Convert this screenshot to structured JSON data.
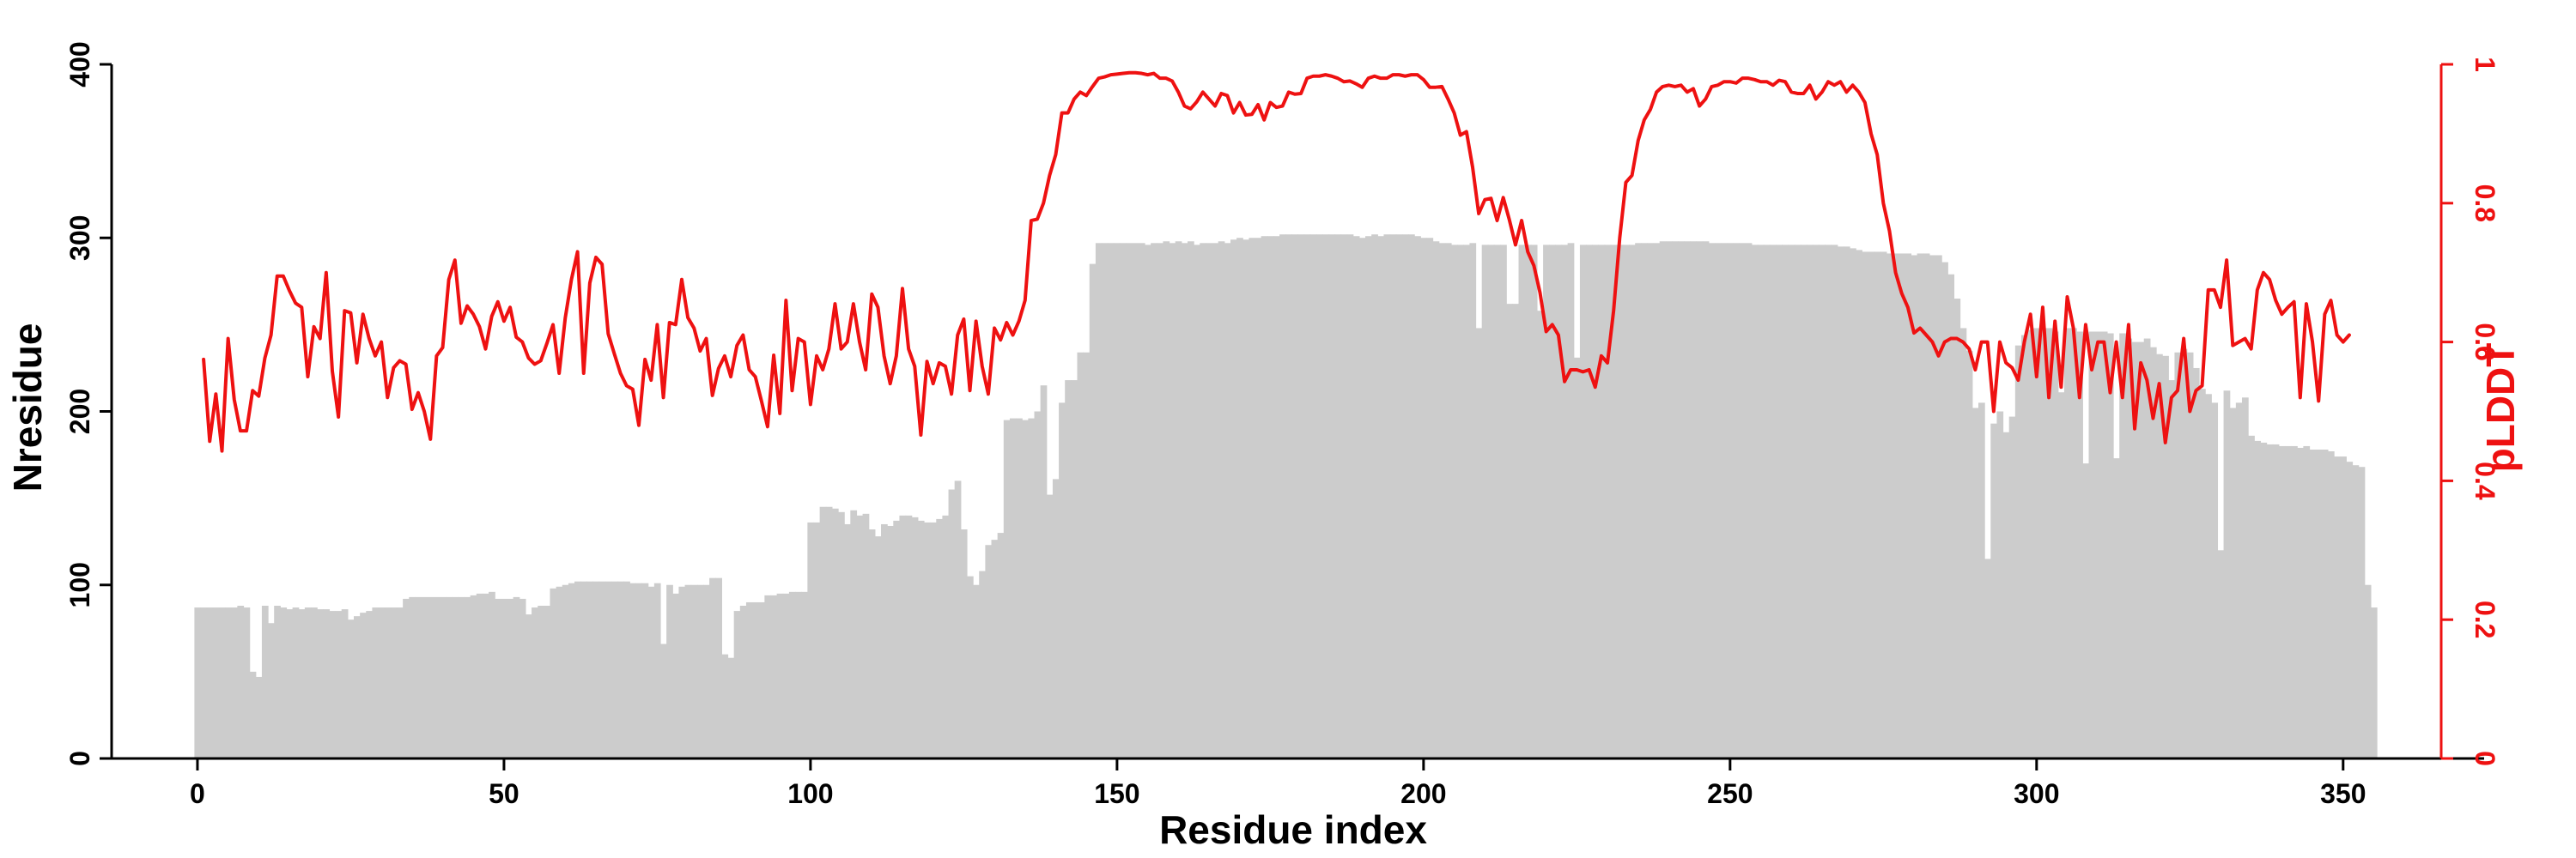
{
  "chart_data": {
    "type": "bar",
    "xlabel": "Residue index",
    "ylabel": "Nresidue",
    "y2label": "pLDDT",
    "xlim": [
      -14,
      373
    ],
    "ylim": [
      0,
      400
    ],
    "y2lim": [
      0,
      1
    ],
    "xticks": [
      0,
      50,
      100,
      150,
      200,
      250,
      300,
      350
    ],
    "yticks": [
      0,
      100,
      200,
      300,
      400
    ],
    "y2ticks": [
      0,
      0.2,
      0.4,
      0.6,
      0.8,
      1
    ],
    "grid": false,
    "colors": {
      "bars": "#cccccc",
      "plddt": "#ee1111",
      "axis": "#000000",
      "axis2": "#ee1111"
    },
    "series": [
      {
        "name": "Nresidue",
        "type": "bar",
        "x_start": 0,
        "values": [
          87,
          87,
          87,
          87,
          87,
          87,
          87,
          88,
          87,
          50,
          47,
          88,
          78,
          88,
          87,
          86,
          87,
          86,
          87,
          87,
          86,
          86,
          85,
          85,
          86,
          80,
          82,
          84,
          85,
          87,
          87,
          87,
          87,
          87,
          92,
          93,
          93,
          93,
          93,
          93,
          93,
          93,
          93,
          93,
          93,
          94,
          95,
          95,
          96,
          92,
          92,
          92,
          93,
          92,
          83,
          87,
          88,
          88,
          98,
          99,
          100,
          101,
          102,
          102,
          102,
          102,
          102,
          102,
          102,
          102,
          102,
          101,
          101,
          101,
          99,
          101,
          66,
          100,
          95,
          99,
          100,
          100,
          100,
          100,
          104,
          104,
          60,
          58,
          85,
          88,
          90,
          90,
          90,
          94,
          94,
          95,
          95,
          96,
          96,
          96,
          136,
          136,
          145,
          145,
          144,
          142,
          135,
          143,
          140,
          141,
          132,
          128,
          135,
          134,
          137,
          140,
          140,
          139,
          137,
          136,
          136,
          138,
          140,
          155,
          160,
          132,
          105,
          100,
          108,
          123,
          126,
          130,
          195,
          196,
          196,
          195,
          196,
          200,
          215,
          152,
          161,
          205,
          218,
          218,
          234,
          234,
          285,
          297,
          297,
          297,
          297,
          297,
          297,
          297,
          297,
          296,
          297,
          297,
          298,
          297,
          298,
          297,
          298,
          296,
          297,
          297,
          297,
          298,
          297,
          299,
          300,
          299,
          300,
          300,
          301,
          301,
          301,
          302,
          302,
          302,
          302,
          302,
          302,
          302,
          302,
          302,
          302,
          302,
          302,
          301,
          300,
          301,
          302,
          301,
          302,
          302,
          302,
          302,
          302,
          301,
          300,
          300,
          298,
          297,
          297,
          296,
          296,
          296,
          297,
          248,
          296,
          296,
          296,
          296,
          262,
          262,
          296,
          296,
          296,
          258,
          296,
          296,
          296,
          296,
          297,
          231,
          296,
          296,
          296,
          296,
          296,
          296,
          296,
          296,
          296,
          297,
          297,
          297,
          297,
          298,
          298,
          298,
          298,
          298,
          298,
          298,
          298,
          297,
          297,
          297,
          297,
          297,
          297,
          297,
          296,
          296,
          296,
          296,
          296,
          296,
          296,
          296,
          296,
          296,
          296,
          296,
          296,
          296,
          295,
          295,
          294,
          293,
          292,
          292,
          292,
          292,
          291,
          291,
          291,
          291,
          290,
          291,
          291,
          290,
          290,
          286,
          279,
          265,
          248,
          235,
          202,
          205,
          115,
          193,
          200,
          188,
          197,
          238,
          244,
          247,
          248,
          248,
          248,
          246,
          211,
          248,
          248,
          246,
          170,
          246,
          246,
          246,
          245,
          173,
          245,
          242,
          240,
          240,
          242,
          237,
          233,
          232,
          218,
          234,
          236,
          234,
          225,
          213,
          210,
          205,
          120,
          212,
          202,
          205,
          208,
          186,
          183,
          182,
          181,
          181,
          180,
          180,
          180,
          179,
          180,
          178,
          178,
          178,
          177,
          174,
          174,
          171,
          169,
          168,
          100,
          87
        ]
      },
      {
        "name": "pLDDT",
        "type": "line",
        "axis": "y2",
        "x_start": 1,
        "values": [
          0.575,
          0.457,
          0.525,
          0.443,
          0.605,
          0.517,
          0.472,
          0.472,
          0.53,
          0.522,
          0.577,
          0.61,
          0.695,
          0.695,
          0.674,
          0.656,
          0.65,
          0.55,
          0.622,
          0.605,
          0.7,
          0.558,
          0.492,
          0.645,
          0.642,
          0.57,
          0.64,
          0.605,
          0.58,
          0.6,
          0.52,
          0.563,
          0.573,
          0.568,
          0.503,
          0.527,
          0.5,
          0.46,
          0.58,
          0.592,
          0.69,
          0.718,
          0.627,
          0.652,
          0.64,
          0.622,
          0.59,
          0.637,
          0.658,
          0.63,
          0.65,
          0.607,
          0.6,
          0.577,
          0.568,
          0.573,
          0.598,
          0.625,
          0.555,
          0.635,
          0.69,
          0.73,
          0.555,
          0.685,
          0.722,
          0.712,
          0.612,
          0.583,
          0.555,
          0.537,
          0.532,
          0.48,
          0.575,
          0.545,
          0.625,
          0.52,
          0.628,
          0.625,
          0.69,
          0.635,
          0.62,
          0.587,
          0.605,
          0.523,
          0.562,
          0.58,
          0.55,
          0.595,
          0.61,
          0.56,
          0.55,
          0.515,
          0.478,
          0.581,
          0.497,
          0.66,
          0.53,
          0.605,
          0.6,
          0.51,
          0.58,
          0.56,
          0.59,
          0.655,
          0.59,
          0.6,
          0.655,
          0.6,
          0.56,
          0.669,
          0.65,
          0.58,
          0.54,
          0.58,
          0.677,
          0.59,
          0.565,
          0.466,
          0.572,
          0.54,
          0.57,
          0.565,
          0.525,
          0.61,
          0.633,
          0.53,
          0.63,
          0.565,
          0.525,
          0.62,
          0.603,
          0.628,
          0.61,
          0.63,
          0.66,
          0.775,
          0.777,
          0.8,
          0.84,
          0.87,
          0.93,
          0.93,
          0.95,
          0.96,
          0.955,
          0.968,
          0.98,
          0.982,
          0.985,
          0.986,
          0.987,
          0.988,
          0.988,
          0.987,
          0.985,
          0.987,
          0.98,
          0.98,
          0.976,
          0.96,
          0.94,
          0.936,
          0.946,
          0.96,
          0.95,
          0.94,
          0.958,
          0.955,
          0.93,
          0.945,
          0.927,
          0.928,
          0.942,
          0.92,
          0.945,
          0.938,
          0.94,
          0.96,
          0.957,
          0.958,
          0.98,
          0.983,
          0.983,
          0.985,
          0.983,
          0.98,
          0.975,
          0.976,
          0.972,
          0.967,
          0.98,
          0.983,
          0.98,
          0.98,
          0.985,
          0.985,
          0.983,
          0.985,
          0.985,
          0.978,
          0.967,
          0.967,
          0.968,
          0.95,
          0.93,
          0.898,
          0.903,
          0.852,
          0.785,
          0.805,
          0.807,
          0.775,
          0.808,
          0.776,
          0.74,
          0.775,
          0.73,
          0.71,
          0.671,
          0.615,
          0.625,
          0.61,
          0.543,
          0.56,
          0.56,
          0.557,
          0.56,
          0.535,
          0.58,
          0.57,
          0.645,
          0.75,
          0.83,
          0.84,
          0.89,
          0.92,
          0.935,
          0.96,
          0.968,
          0.97,
          0.968,
          0.97,
          0.96,
          0.965,
          0.94,
          0.95,
          0.968,
          0.97,
          0.975,
          0.975,
          0.973,
          0.98,
          0.98,
          0.978,
          0.975,
          0.975,
          0.97,
          0.977,
          0.975,
          0.96,
          0.958,
          0.958,
          0.97,
          0.95,
          0.96,
          0.975,
          0.97,
          0.975,
          0.96,
          0.97,
          0.96,
          0.945,
          0.9,
          0.87,
          0.8,
          0.76,
          0.7,
          0.67,
          0.65,
          0.613,
          0.62,
          0.61,
          0.6,
          0.58,
          0.6,
          0.605,
          0.605,
          0.6,
          0.59,
          0.56,
          0.6,
          0.6,
          0.5,
          0.6,
          0.57,
          0.563,
          0.545,
          0.6,
          0.64,
          0.55,
          0.65,
          0.52,
          0.63,
          0.535,
          0.665,
          0.62,
          0.52,
          0.625,
          0.56,
          0.6,
          0.6,
          0.527,
          0.6,
          0.52,
          0.625,
          0.475,
          0.57,
          0.545,
          0.49,
          0.54,
          0.455,
          0.52,
          0.53,
          0.605,
          0.5,
          0.53,
          0.537,
          0.675,
          0.675,
          0.65,
          0.718,
          0.595,
          0.6,
          0.605,
          0.59,
          0.675,
          0.7,
          0.69,
          0.66,
          0.64,
          0.65,
          0.658,
          0.52,
          0.655,
          0.6,
          0.515,
          0.64,
          0.66,
          0.61,
          0.6,
          0.61
        ]
      }
    ]
  }
}
